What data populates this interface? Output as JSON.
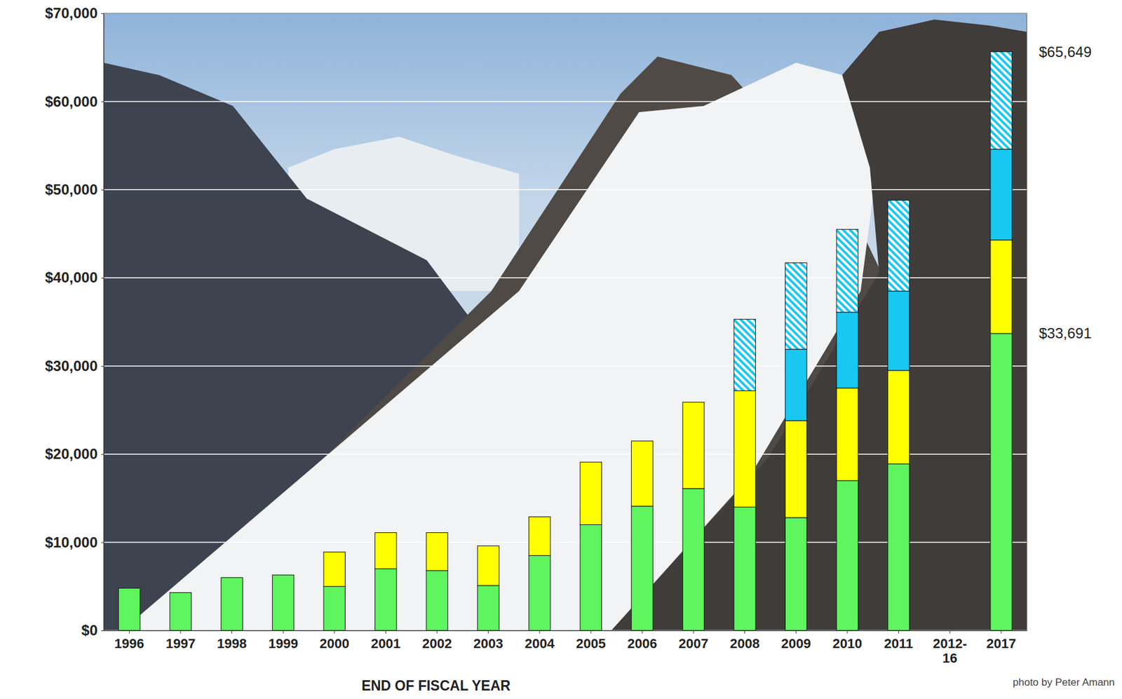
{
  "chart_data": {
    "type": "bar",
    "stacked": true,
    "grid": true,
    "x_label": "END OF FISCAL YEAR",
    "categories": [
      "1996",
      "1997",
      "1998",
      "1999",
      "2000",
      "2001",
      "2002",
      "2003",
      "2004",
      "2005",
      "2006",
      "2007",
      "2008",
      "2009",
      "2010",
      "2011",
      "2012-\n16",
      "2017"
    ],
    "series": [
      {
        "color": "#5ef55e",
        "values": [
          4800,
          4300,
          6000,
          6300,
          5000,
          7000,
          6800,
          5100,
          8500,
          12000,
          14100,
          16100,
          14000,
          12800,
          17000,
          18900,
          null,
          33691
        ]
      },
      {
        "color": "#ffff00",
        "values": [
          null,
          null,
          null,
          null,
          3900,
          4100,
          4300,
          4500,
          4400,
          7100,
          7400,
          9800,
          13200,
          11000,
          10500,
          10600,
          null,
          10600
        ]
      },
      {
        "color": "#18c8f0",
        "values": [
          null,
          null,
          null,
          null,
          null,
          null,
          null,
          null,
          null,
          null,
          null,
          null,
          null,
          8100,
          8600,
          9000,
          null,
          10300
        ]
      },
      {
        "color": "#18c8f0",
        "line_style": "hatch",
        "values": [
          null,
          null,
          null,
          null,
          null,
          null,
          null,
          null,
          null,
          null,
          null,
          null,
          8100,
          9800,
          9400,
          10300,
          null,
          11058
        ]
      }
    ],
    "ylim": [
      0,
      70000
    ],
    "yticks": [
      {
        "value": 0,
        "label": "$0"
      },
      {
        "value": 10000,
        "label": "$10,000"
      },
      {
        "value": 20000,
        "label": "$20,000"
      },
      {
        "value": 30000,
        "label": "$30,000"
      },
      {
        "value": 40000,
        "label": "$40,000"
      },
      {
        "value": 50000,
        "label": "$50,000"
      },
      {
        "value": 60000,
        "label": "$60,000"
      },
      {
        "value": 70000,
        "label": "$70,000"
      }
    ],
    "annotations": [
      {
        "text": "$65,649",
        "y": 65649
      },
      {
        "text": "$33,691",
        "y": 33691
      }
    ],
    "credit": "photo by Peter Amann"
  }
}
